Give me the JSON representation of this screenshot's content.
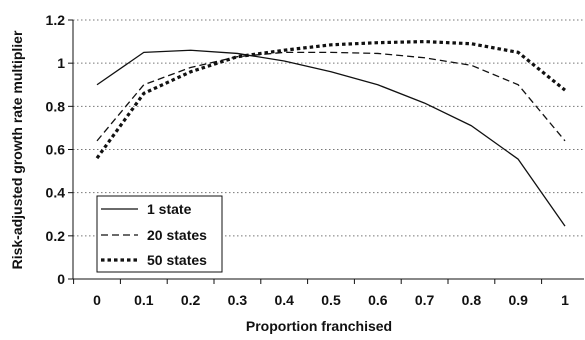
{
  "chart_data": {
    "type": "line",
    "xlabel": "Proportion franchised",
    "ylabel": "Risk-adjusted growth rate multiplier",
    "x_ticks": [
      "0",
      "0.1",
      "0.2",
      "0.3",
      "0.4",
      "0.5",
      "0.6",
      "0.7",
      "0.8",
      "0.9",
      "1"
    ],
    "y_ticks": [
      "0",
      "0.2",
      "0.4",
      "0.6",
      "0.8",
      "1",
      "1.2"
    ],
    "xlim": [
      0,
      1
    ],
    "ylim": [
      0,
      1.2
    ],
    "grid": "horizontal dotted",
    "legend_position": "bottom-left",
    "x": [
      0,
      0.1,
      0.2,
      0.3,
      0.4,
      0.5,
      0.6,
      0.7,
      0.8,
      0.9,
      1
    ],
    "series": [
      {
        "name": "1 state",
        "style": "solid",
        "color": "#111111",
        "values": [
          0.9,
          1.05,
          1.06,
          1.045,
          1.01,
          0.96,
          0.9,
          0.815,
          0.71,
          0.555,
          0.245
        ]
      },
      {
        "name": "20 states",
        "style": "dashed",
        "color": "#111111",
        "values": [
          0.64,
          0.9,
          0.98,
          1.03,
          1.05,
          1.05,
          1.045,
          1.025,
          0.99,
          0.9,
          0.64
        ]
      },
      {
        "name": "50 states",
        "style": "dotted",
        "color": "#111111",
        "values": [
          0.56,
          0.86,
          0.96,
          1.03,
          1.06,
          1.085,
          1.095,
          1.1,
          1.09,
          1.05,
          0.875
        ]
      }
    ]
  }
}
